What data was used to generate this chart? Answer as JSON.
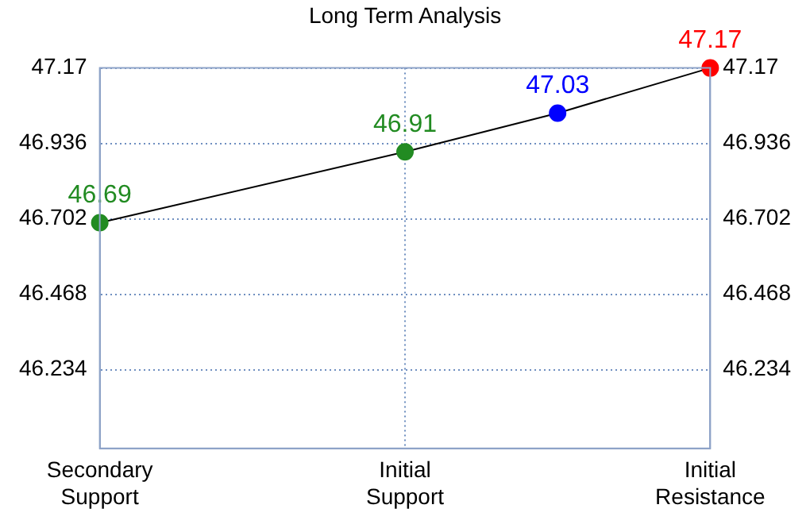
{
  "chart_data": {
    "type": "line",
    "title": "Long Term Analysis",
    "categories": [
      "Secondary Support",
      null,
      "Initial Support",
      null,
      "Initial Resistance"
    ],
    "ylim": [
      45.99,
      47.17
    ],
    "yticks": [
      46.234,
      46.468,
      46.702,
      46.936,
      47.17
    ],
    "y2lim": [
      45.99,
      47.17
    ],
    "y2ticks": [
      46.234,
      46.468,
      46.702,
      46.936,
      47.17
    ],
    "series": [
      {
        "color": "#000000",
        "values": [
          46.69,
          null,
          46.91,
          47.03,
          47.17
        ],
        "colors": [
          "#228b22",
          null,
          "#228b22",
          "#0000ff",
          "#ff0000"
        ]
      }
    ],
    "marker": "circle",
    "data_labels": true,
    "grid": true,
    "legend": false
  }
}
